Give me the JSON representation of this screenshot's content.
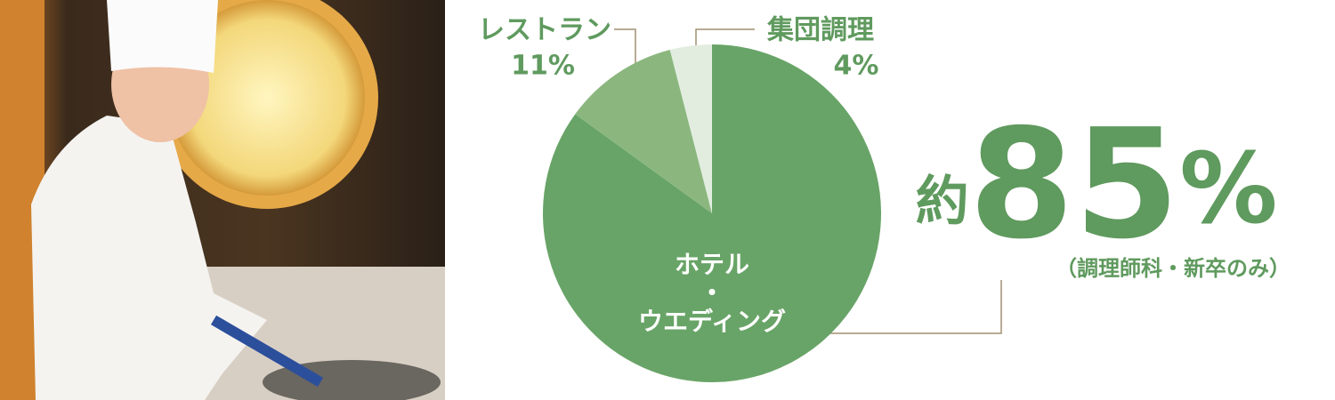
{
  "chart_data": {
    "type": "pie",
    "categories": [
      "ホテル\n・\nウエディング",
      "レストラン",
      "集団調理"
    ],
    "values": [
      85,
      11,
      4
    ],
    "value_labels": [
      "約85%",
      "11%",
      "4%"
    ],
    "colors": [
      "#68a467",
      "#8bb77f",
      "#e2ede0"
    ],
    "start_angle": 0,
    "direction": "clockwise",
    "annotation": "（調理師科・新卒のみ）"
  }
}
